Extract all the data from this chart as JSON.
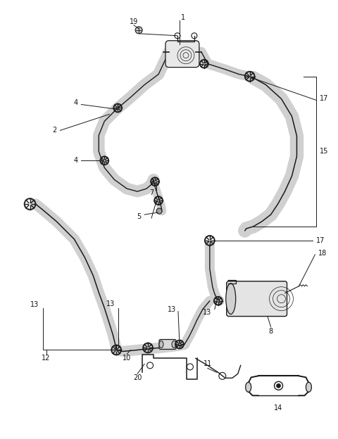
{
  "bg_color": "#ffffff",
  "line_color": "#1a1a1a",
  "label_color": "#111111",
  "hose_fill": "#d0d0d0",
  "hose_outline": "#1a1a1a",
  "figure_width": 4.8,
  "figure_height": 6.24,
  "dpi": 100,
  "label_fontsize": 7.0,
  "parts": [
    "1",
    "2",
    "4",
    "4",
    "5",
    "7",
    "8",
    "10",
    "11",
    "12",
    "13",
    "13",
    "13",
    "14",
    "15",
    "17",
    "17",
    "18",
    "19",
    "20"
  ]
}
